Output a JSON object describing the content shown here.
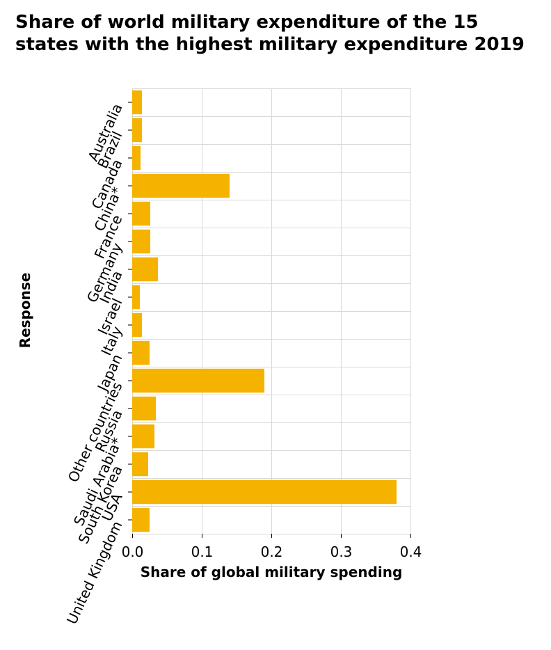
{
  "chart_data": {
    "type": "bar",
    "orientation": "horizontal",
    "title": "Share of world military expenditure of the 15 states with the highest military expenditure 2019",
    "xlabel": "Share of global military spending",
    "ylabel": "Response",
    "categories": [
      "Australia",
      "Brazil",
      "Canada",
      "China*",
      "France",
      "Germany",
      "India",
      "Israel",
      "Italy",
      "Japan",
      "Other countries",
      "Russia",
      "Saudi Arabia*",
      "South Korea",
      "USA",
      "United Kingdom"
    ],
    "values": [
      0.014,
      0.014,
      0.012,
      0.14,
      0.026,
      0.026,
      0.037,
      0.011,
      0.014,
      0.025,
      0.19,
      0.034,
      0.032,
      0.023,
      0.38,
      0.025
    ],
    "xlim": [
      0,
      0.4
    ],
    "xticks": [
      "0.0",
      "0.1",
      "0.2",
      "0.3",
      "0.4"
    ],
    "grid": true,
    "bar_color": "#f5b300"
  }
}
